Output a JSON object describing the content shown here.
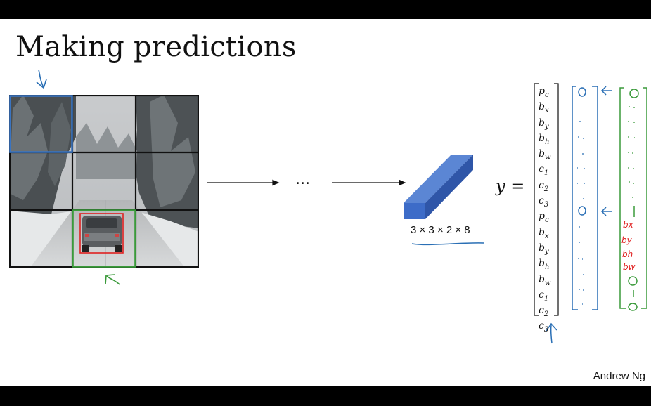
{
  "title": "Making predictions",
  "ellipsis": "...",
  "output_shape_label": "3 × 3 × 2 × 8",
  "y_equals": "y =",
  "vector_entries": [
    {
      "base": "p",
      "sub": "c"
    },
    {
      "base": "b",
      "sub": "x"
    },
    {
      "base": "b",
      "sub": "y"
    },
    {
      "base": "b",
      "sub": "h"
    },
    {
      "base": "b",
      "sub": "w"
    },
    {
      "base": "c",
      "sub": "1"
    },
    {
      "base": "c",
      "sub": "2"
    },
    {
      "base": "c",
      "sub": "3"
    },
    {
      "base": "p",
      "sub": "c"
    },
    {
      "base": "b",
      "sub": "x"
    },
    {
      "base": "b",
      "sub": "y"
    },
    {
      "base": "b",
      "sub": "h"
    },
    {
      "base": "b",
      "sub": "w"
    },
    {
      "base": "c",
      "sub": "1"
    },
    {
      "base": "c",
      "sub": "2"
    },
    {
      "base": "c",
      "sub": "3"
    }
  ],
  "green_red_labels": [
    "bx",
    "by",
    "bh",
    "bw"
  ],
  "credit": "Andrew Ng",
  "colors": {
    "blue_annotation": "#2a6fb5",
    "green_annotation": "#3a9a3a",
    "red_annotation": "#e02020",
    "prism_blue": "#3d6cc8",
    "grid_line": "#111111"
  }
}
